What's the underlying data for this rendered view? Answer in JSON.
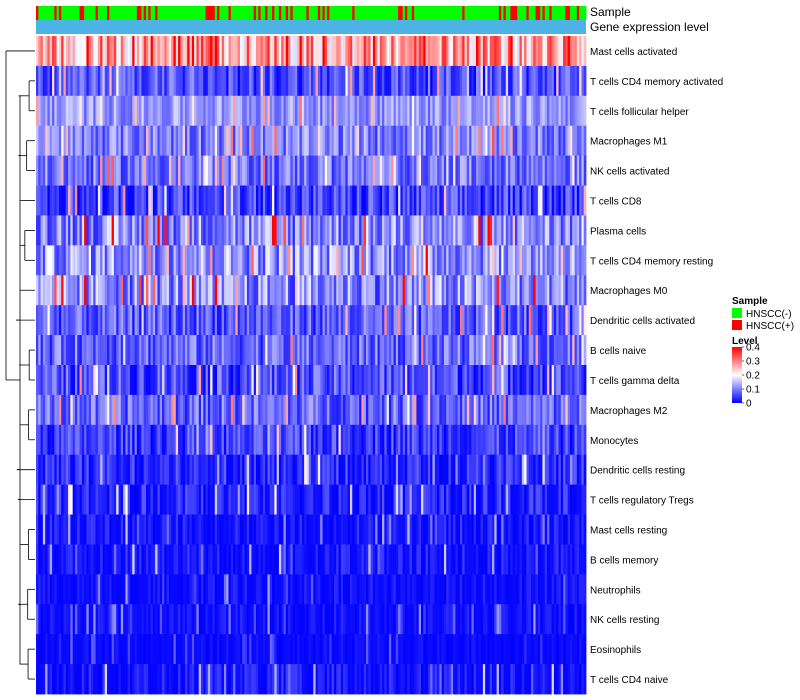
{
  "chart_data": {
    "type": "heatmap",
    "title": "",
    "annotation_tracks": [
      {
        "name": "Sample",
        "label": "Sample"
      },
      {
        "name": "Gene expression level",
        "label": "Gene expression level",
        "color": "#4db3e6"
      }
    ],
    "n_samples": 240,
    "sample_groups": {
      "title": "Sample",
      "entries": [
        {
          "label": "HNSCC(-)",
          "color": "#00ff00"
        },
        {
          "label": "HNSCC(+)",
          "color": "#ff0000"
        }
      ],
      "positive_fraction": 0.17
    },
    "color_scale": {
      "title": "Level",
      "min": 0,
      "max": 0.4,
      "ticks": [
        "0.4",
        "0.3",
        "0.2",
        "0.1",
        "0"
      ],
      "stops": [
        {
          "value": 0,
          "color": "#0000ff"
        },
        {
          "value": 0.2,
          "color": "#ffffff"
        },
        {
          "value": 0.4,
          "color": "#ff0000"
        }
      ]
    },
    "rows": [
      {
        "label": "Mast cells activated",
        "mean": 0.27,
        "spread": 0.1
      },
      {
        "label": "T cells CD4 memory activated",
        "mean": 0.06,
        "spread": 0.06
      },
      {
        "label": "T cells follicular helper",
        "mean": 0.12,
        "spread": 0.05
      },
      {
        "label": "Macrophages M1",
        "mean": 0.1,
        "spread": 0.06
      },
      {
        "label": "NK cells activated",
        "mean": 0.09,
        "spread": 0.06
      },
      {
        "label": "T cells CD8",
        "mean": 0.05,
        "spread": 0.06
      },
      {
        "label": "Plasma cells",
        "mean": 0.11,
        "spread": 0.08
      },
      {
        "label": "T cells CD4 memory resting",
        "mean": 0.12,
        "spread": 0.08
      },
      {
        "label": "Macrophages M0",
        "mean": 0.11,
        "spread": 0.08
      },
      {
        "label": "Dendritic cells activated",
        "mean": 0.07,
        "spread": 0.06
      },
      {
        "label": "B cells naive",
        "mean": 0.08,
        "spread": 0.06
      },
      {
        "label": "T cells gamma delta",
        "mean": 0.06,
        "spread": 0.06
      },
      {
        "label": "Macrophages M2",
        "mean": 0.08,
        "spread": 0.06
      },
      {
        "label": "Monocytes",
        "mean": 0.05,
        "spread": 0.05
      },
      {
        "label": "Dendritic cells resting",
        "mean": 0.03,
        "spread": 0.05
      },
      {
        "label": "T cells regulatory  Tregs",
        "mean": 0.02,
        "spread": 0.05
      },
      {
        "label": "Mast cells resting",
        "mean": 0.01,
        "spread": 0.04
      },
      {
        "label": "B cells memory",
        "mean": 0.01,
        "spread": 0.04
      },
      {
        "label": "Neutrophils",
        "mean": 0.005,
        "spread": 0.03
      },
      {
        "label": "NK cells resting",
        "mean": 0.005,
        "spread": 0.03
      },
      {
        "label": "Eosinophils",
        "mean": 0.002,
        "spread": 0.02
      },
      {
        "label": "T cells CD4 naive",
        "mean": 0.01,
        "spread": 0.04
      }
    ],
    "dendrogram": {
      "merges": [
        [
          1,
          2
        ],
        [
          3,
          4
        ],
        [
          6,
          7
        ],
        [
          10,
          11
        ],
        [
          12,
          13
        ],
        [
          16,
          17
        ],
        [
          18,
          19
        ],
        [
          20,
          21
        ]
      ]
    }
  }
}
